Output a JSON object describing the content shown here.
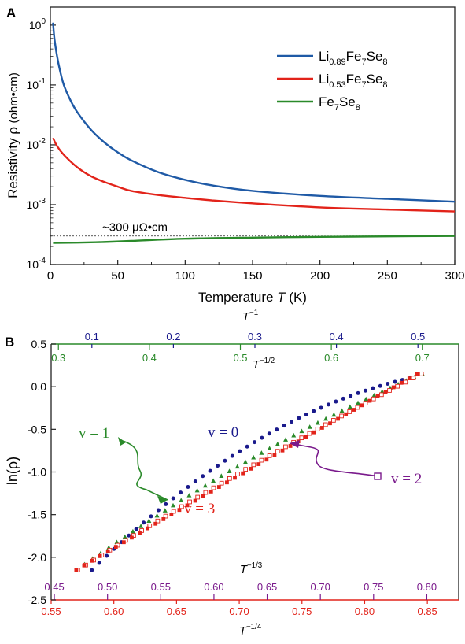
{
  "chart_data": [
    {
      "panel": "A",
      "type": "line",
      "xlabel": "Temperature T (K)",
      "xlabel_parts": {
        "pre": "Temperature ",
        "var": "T",
        "post": " (K)"
      },
      "ylabel": "Resistivity ρ (ohm•cm)",
      "ylabel_parts": {
        "pre": "Resistivity ",
        "var": "ρ",
        "post": " (ohm•cm)"
      },
      "xlim": [
        0,
        300
      ],
      "ylim": [
        0.0001,
        2
      ],
      "yscale": "log",
      "xticks": [
        "0",
        "50",
        "100",
        "150",
        "200",
        "250",
        "300"
      ],
      "yticks": [
        {
          "base": "10",
          "exp": "0"
        },
        {
          "base": "10",
          "exp": "-1"
        },
        {
          "base": "10",
          "exp": "-2"
        },
        {
          "base": "10",
          "exp": "-3"
        },
        {
          "base": "10",
          "exp": "-4"
        }
      ],
      "grid": false,
      "legend_position": "top-right",
      "annotation": {
        "text": "~300 μΩ•cm",
        "value": 0.0003
      },
      "series": [
        {
          "name": "Li0.89Fe7Se8",
          "legend": [
            {
              "t": "Li",
              "s": ""
            },
            {
              "t": "0.89",
              "s": "sub"
            },
            {
              "t": "Fe",
              "s": ""
            },
            {
              "t": "7",
              "s": "sub"
            },
            {
              "t": "Se",
              "s": ""
            },
            {
              "t": "8",
              "s": "sub"
            }
          ],
          "color": "#1f5aa6",
          "x": [
            2,
            3,
            5,
            7,
            10,
            15,
            20,
            30,
            40,
            50,
            60,
            80,
            100,
            120,
            150,
            200,
            250,
            300
          ],
          "y": [
            1.1,
            0.6,
            0.3,
            0.18,
            0.1,
            0.055,
            0.035,
            0.018,
            0.011,
            0.0075,
            0.0055,
            0.0035,
            0.0026,
            0.0021,
            0.0017,
            0.0014,
            0.00125,
            0.00112
          ]
        },
        {
          "name": "Li0.53Fe7Se8",
          "legend": [
            {
              "t": "Li",
              "s": ""
            },
            {
              "t": "0.53",
              "s": "sub"
            },
            {
              "t": "Fe",
              "s": ""
            },
            {
              "t": "7",
              "s": "sub"
            },
            {
              "t": "Se",
              "s": ""
            },
            {
              "t": "8",
              "s": "sub"
            }
          ],
          "color": "#e2231a",
          "x": [
            2,
            5,
            10,
            20,
            30,
            40,
            50,
            60,
            80,
            100,
            120,
            150,
            200,
            250,
            300
          ],
          "y": [
            0.013,
            0.0095,
            0.0068,
            0.0042,
            0.003,
            0.0024,
            0.002,
            0.0017,
            0.00145,
            0.0013,
            0.00118,
            0.00105,
            0.0009,
            0.00083,
            0.00077
          ]
        },
        {
          "name": "Fe7Se8",
          "legend": [
            {
              "t": "Fe",
              "s": ""
            },
            {
              "t": "7",
              "s": "sub"
            },
            {
              "t": "Se",
              "s": ""
            },
            {
              "t": "8",
              "s": "sub"
            }
          ],
          "color": "#2a8a2a",
          "x": [
            2,
            20,
            40,
            60,
            100,
            150,
            200,
            250,
            300
          ],
          "y": [
            0.00023,
            0.000232,
            0.000238,
            0.000248,
            0.00027,
            0.000282,
            0.00029,
            0.000296,
            0.0003
          ]
        }
      ]
    },
    {
      "panel": "B",
      "type": "scatter",
      "ylabel": "ln(ρ)",
      "ylim": [
        -2.5,
        0.5
      ],
      "yticks": [
        "-2.5",
        "-2.0",
        "-1.5",
        "-1.0",
        "-0.5",
        "0.0",
        "0.5"
      ],
      "axes": [
        {
          "id": "v0",
          "label": "T",
          "exp": "−1",
          "color": "#1a1a8c",
          "range": [
            0.05,
            0.55
          ],
          "ticks": [
            "0.1",
            "0.2",
            "0.3",
            "0.4",
            "0.5"
          ]
        },
        {
          "id": "v1",
          "label": "T",
          "exp": "−1/2",
          "color": "#2a8a2a",
          "range": [
            0.292,
            0.74
          ],
          "ticks": [
            "0.3",
            "0.4",
            "0.5",
            "0.6",
            "0.7"
          ]
        },
        {
          "id": "v2",
          "label": "T",
          "exp": "−1/3",
          "color": "#7a1a8c",
          "range": [
            0.447,
            0.83
          ],
          "ticks": [
            "0.45",
            "0.50",
            "0.55",
            "0.60",
            "0.65",
            "0.70",
            "0.75",
            "0.80"
          ]
        },
        {
          "id": "v3",
          "label": "T",
          "exp": "−1/4",
          "color": "#e2231a",
          "range": [
            0.55,
            0.875
          ],
          "ticks": [
            "0.55",
            "0.60",
            "0.65",
            "0.70",
            "0.75",
            "0.80",
            "0.85"
          ]
        }
      ],
      "annotations": [
        {
          "text": "v = 0",
          "color": "#1a1a8c"
        },
        {
          "text": "v = 1",
          "color": "#2a8a2a"
        },
        {
          "text": "v = 2",
          "color": "#7a1a8c"
        },
        {
          "text": "v = 3",
          "color": "#e2231a"
        }
      ],
      "series": [
        {
          "name": "v = 0",
          "axis": "v0",
          "marker": "circle",
          "color": "#1a1a8c",
          "x_range": [
            0.1,
            0.49
          ],
          "y_range": [
            -2.15,
            0.1
          ],
          "curvature": 0.62,
          "count": 44
        },
        {
          "name": "v = 1",
          "axis": "v1",
          "marker": "triangle",
          "color": "#2a8a2a",
          "x_range": [
            0.32,
            0.7
          ],
          "y_range": [
            -2.15,
            0.15
          ],
          "curvature": 0.25,
          "count": 44
        },
        {
          "name": "v = 2",
          "axis": "v2",
          "marker": "open-square",
          "color": "#e2231a",
          "x_range": [
            0.472,
            0.795
          ],
          "y_range": [
            -2.15,
            0.15
          ],
          "curvature": 0.1,
          "count": 44
        },
        {
          "name": "v = 3",
          "axis": "v3",
          "marker": "square",
          "color": "#e2231a",
          "x_range": [
            0.57,
            0.842
          ],
          "y_range": [
            -2.15,
            0.15
          ],
          "curvature": 0.02,
          "count": 44
        }
      ]
    }
  ]
}
